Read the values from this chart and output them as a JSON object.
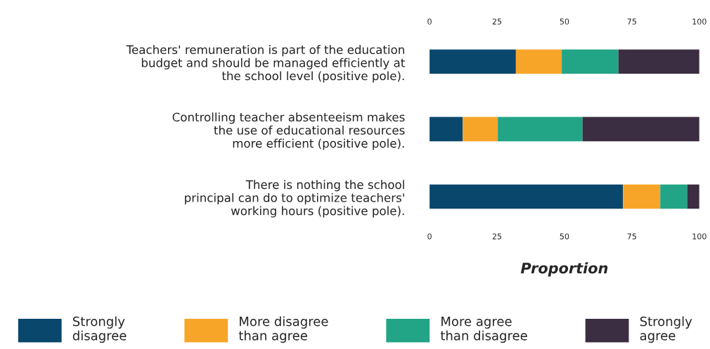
{
  "chart_data": {
    "type": "bar",
    "orientation": "horizontal",
    "stacked": true,
    "categories": [
      "Teachers' remuneration is part of the education\nbudget and should be managed efficiently at\nthe school level (positive pole).",
      "Controlling teacher absenteeism makes\nthe use of educational resources\nmore efficient (positive pole).",
      "There is nothing the school\nprincipal can do to optimize teachers'\nworking hours (positive pole)."
    ],
    "series": [
      {
        "name": "Strongly\ndisagree",
        "color": "#0a476c",
        "values": [
          32,
          12.3,
          71.7
        ]
      },
      {
        "name": "More disagree\nthan agree",
        "color": "#f7a529",
        "values": [
          17,
          13,
          13.8
        ]
      },
      {
        "name": "More agree\nthan disagree",
        "color": "#22a486",
        "values": [
          21,
          31.4,
          10
        ]
      },
      {
        "name": "Strongly\nagree",
        "color": "#3b2d42",
        "values": [
          30,
          43.3,
          4.5
        ]
      }
    ],
    "xlabel": "Proportion",
    "xlim": [
      0,
      100
    ],
    "xticks": [
      0,
      25,
      50,
      75,
      100
    ],
    "x2lim": [
      0,
      100
    ],
    "x2ticks": [
      0,
      25,
      50,
      75,
      100
    ],
    "grid": false,
    "legend": "bottom"
  }
}
